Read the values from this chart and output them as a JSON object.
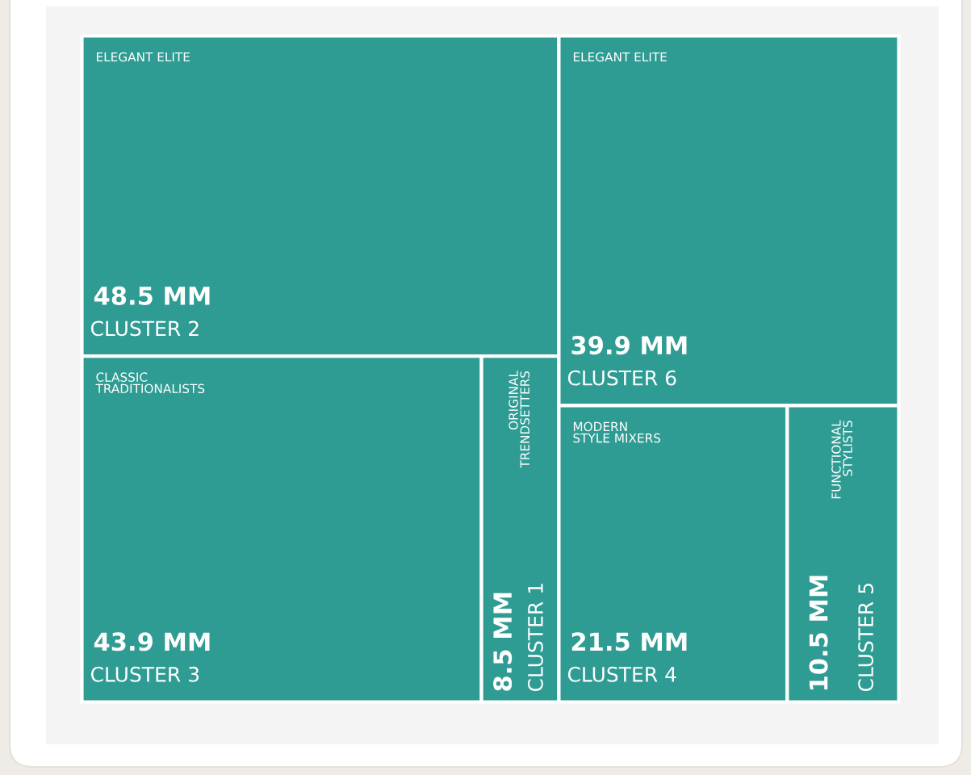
{
  "chart_data": {
    "type": "other",
    "categories": [
      "CLUSTER 2",
      "CLUSTER 3",
      "CLUSTER 1",
      "CLUSTER 6",
      "CLUSTER 4",
      "CLUSTER 5"
    ],
    "values": [
      48.5,
      43.9,
      8.5,
      39.9,
      21.5,
      10.5
    ],
    "value_labels": [
      "48.5 MM",
      "43.9 MM",
      "8.5 MM",
      "39.9 MM",
      "21.5 MM",
      "10.5 MM"
    ],
    "annotations": [
      "ELEGANT ELITE",
      "CLASSIC\nTRADITIONALISTS",
      "ORIGINAL\nTRENDSETTERS",
      "ELEGANT ELITE",
      "MODERN\nSTYLE MIXERS",
      "FUNCTIONAL\nSTYLISTS"
    ],
    "color": "#2f9c94"
  }
}
